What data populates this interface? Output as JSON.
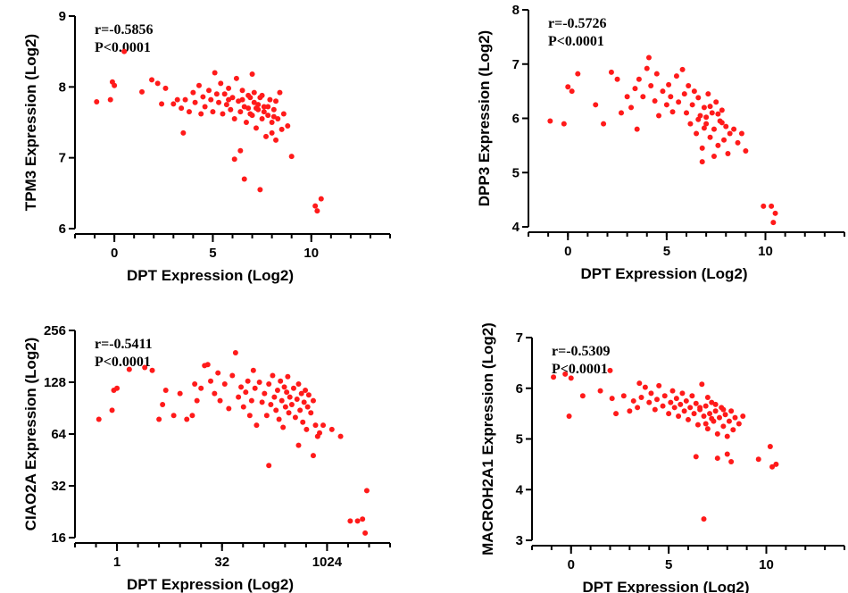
{
  "chart_data": [
    {
      "type": "scatter",
      "xlabel": "DPT Expression (Log2)",
      "ylabel": "TPM3 Expression (Log2)",
      "xlim": [
        -2,
        14
      ],
      "ylim": [
        6,
        9
      ],
      "xticks": [
        0,
        5,
        10
      ],
      "xtick_labels": [
        "0",
        "5",
        "10"
      ],
      "yticks": [
        6,
        7,
        8,
        9
      ],
      "ytick_labels": [
        "6",
        "7",
        "8",
        "9"
      ],
      "x_minor_step": 1,
      "y_scale": "linear",
      "annotations": [
        "r=-0.5856",
        "P<0.0001"
      ],
      "points": [
        [
          -0.9,
          7.79
        ],
        [
          -0.2,
          7.82
        ],
        [
          -0.1,
          8.07
        ],
        [
          0.0,
          8.02
        ],
        [
          0.5,
          8.5
        ],
        [
          1.4,
          7.93
        ],
        [
          1.9,
          8.1
        ],
        [
          2.2,
          8.05
        ],
        [
          2.4,
          7.76
        ],
        [
          2.6,
          7.98
        ],
        [
          3.0,
          7.76
        ],
        [
          3.2,
          7.82
        ],
        [
          3.4,
          7.7
        ],
        [
          3.5,
          7.35
        ],
        [
          3.6,
          7.82
        ],
        [
          3.8,
          7.65
        ],
        [
          4.0,
          7.92
        ],
        [
          4.1,
          7.78
        ],
        [
          4.3,
          8.02
        ],
        [
          4.4,
          7.62
        ],
        [
          4.5,
          7.86
        ],
        [
          4.6,
          7.72
        ],
        [
          4.8,
          7.95
        ],
        [
          4.9,
          7.82
        ],
        [
          5.0,
          7.65
        ],
        [
          5.1,
          8.2
        ],
        [
          5.2,
          7.9
        ],
        [
          5.3,
          7.78
        ],
        [
          5.4,
          8.05
        ],
        [
          5.5,
          7.62
        ],
        [
          5.6,
          7.9
        ],
        [
          5.7,
          7.75
        ],
        [
          5.8,
          7.98
        ],
        [
          5.9,
          7.68
        ],
        [
          6.0,
          7.85
        ],
        [
          6.1,
          7.55
        ],
        [
          6.2,
          8.12
        ],
        [
          6.3,
          7.8
        ],
        [
          6.4,
          7.65
        ],
        [
          6.5,
          7.95
        ],
        [
          6.6,
          7.72
        ],
        [
          6.7,
          7.5
        ],
        [
          6.8,
          7.88
        ],
        [
          6.9,
          7.62
        ],
        [
          7.0,
          8.18
        ],
        [
          7.1,
          7.78
        ],
        [
          7.2,
          7.42
        ],
        [
          7.3,
          7.68
        ],
        [
          7.4,
          7.85
        ],
        [
          7.5,
          7.55
        ],
        [
          7.6,
          7.72
        ],
        [
          7.7,
          7.3
        ],
        [
          7.8,
          7.6
        ],
        [
          7.9,
          7.82
        ],
        [
          8.0,
          7.5
        ],
        [
          8.1,
          7.68
        ],
        [
          8.2,
          7.25
        ],
        [
          8.3,
          7.55
        ],
        [
          8.4,
          7.92
        ],
        [
          8.5,
          7.4
        ],
        [
          8.6,
          7.62
        ],
        [
          8.8,
          7.45
        ],
        [
          9.0,
          7.02
        ],
        [
          6.4,
          7.1
        ],
        [
          6.6,
          6.7
        ],
        [
          6.1,
          6.98
        ],
        [
          7.4,
          6.55
        ],
        [
          10.2,
          6.32
        ],
        [
          10.3,
          6.25
        ],
        [
          10.5,
          6.42
        ],
        [
          6.9,
          7.85
        ],
        [
          7.3,
          7.75
        ],
        [
          7.6,
          7.65
        ],
        [
          7.0,
          7.6
        ],
        [
          7.8,
          7.72
        ],
        [
          8.0,
          7.35
        ],
        [
          8.2,
          7.8
        ],
        [
          7.1,
          7.92
        ],
        [
          6.8,
          7.7
        ],
        [
          7.5,
          7.88
        ],
        [
          6.5,
          7.82
        ],
        [
          8.1,
          7.58
        ],
        [
          7.2,
          7.7
        ],
        [
          5.8,
          7.82
        ]
      ]
    },
    {
      "type": "scatter",
      "xlabel": "DPT Expression (Log2)",
      "ylabel": "DPP3 Expression (Log2)",
      "xlim": [
        -2,
        14
      ],
      "ylim": [
        4,
        8
      ],
      "xticks": [
        0,
        5,
        10
      ],
      "xtick_labels": [
        "0",
        "5",
        "10"
      ],
      "yticks": [
        4,
        5,
        6,
        7,
        8
      ],
      "ytick_labels": [
        "4",
        "5",
        "6",
        "7",
        "8"
      ],
      "x_minor_step": 1,
      "y_scale": "linear",
      "annotations": [
        "r=-0.5726",
        "P<0.0001"
      ],
      "points": [
        [
          -0.9,
          5.95
        ],
        [
          -0.2,
          5.9
        ],
        [
          0.0,
          6.58
        ],
        [
          0.2,
          6.5
        ],
        [
          0.5,
          6.82
        ],
        [
          1.4,
          6.25
        ],
        [
          1.8,
          5.9
        ],
        [
          2.2,
          6.85
        ],
        [
          2.5,
          6.72
        ],
        [
          2.7,
          6.1
        ],
        [
          3.0,
          6.4
        ],
        [
          3.2,
          6.2
        ],
        [
          3.4,
          6.55
        ],
        [
          3.5,
          5.8
        ],
        [
          3.6,
          6.72
        ],
        [
          3.8,
          6.4
        ],
        [
          4.0,
          6.92
        ],
        [
          4.1,
          7.12
        ],
        [
          4.2,
          6.6
        ],
        [
          4.4,
          6.32
        ],
        [
          4.5,
          6.82
        ],
        [
          4.6,
          6.05
        ],
        [
          4.8,
          6.5
        ],
        [
          5.0,
          6.25
        ],
        [
          5.1,
          6.62
        ],
        [
          5.2,
          6.4
        ],
        [
          5.3,
          6.12
        ],
        [
          5.5,
          6.78
        ],
        [
          5.6,
          6.3
        ],
        [
          5.8,
          6.9
        ],
        [
          5.9,
          6.45
        ],
        [
          6.0,
          6.1
        ],
        [
          6.1,
          6.6
        ],
        [
          6.2,
          5.9
        ],
        [
          6.3,
          6.25
        ],
        [
          6.4,
          6.5
        ],
        [
          6.5,
          5.72
        ],
        [
          6.6,
          6.38
        ],
        [
          6.7,
          6.05
        ],
        [
          6.8,
          5.45
        ],
        [
          6.9,
          6.2
        ],
        [
          7.0,
          5.9
        ],
        [
          7.1,
          6.45
        ],
        [
          7.2,
          5.65
        ],
        [
          7.3,
          6.1
        ],
        [
          7.4,
          5.8
        ],
        [
          7.5,
          6.3
        ],
        [
          7.6,
          5.5
        ],
        [
          7.7,
          5.95
        ],
        [
          7.8,
          6.15
        ],
        [
          7.9,
          5.6
        ],
        [
          8.0,
          5.85
        ],
        [
          8.1,
          5.35
        ],
        [
          8.2,
          5.72
        ],
        [
          8.4,
          5.8
        ],
        [
          8.6,
          5.55
        ],
        [
          8.8,
          5.72
        ],
        [
          9.0,
          5.4
        ],
        [
          6.8,
          5.2
        ],
        [
          7.4,
          5.3
        ],
        [
          9.9,
          4.38
        ],
        [
          10.3,
          4.38
        ],
        [
          10.5,
          4.25
        ],
        [
          10.4,
          4.08
        ],
        [
          7.0,
          6.02
        ],
        [
          6.6,
          5.98
        ],
        [
          7.6,
          6.08
        ],
        [
          7.2,
          6.22
        ],
        [
          6.9,
          5.82
        ],
        [
          7.8,
          5.92
        ]
      ]
    },
    {
      "type": "scatter",
      "xlabel": "DPT Expression (Log2)",
      "ylabel": "CIAO2A Expression (Log2)",
      "xlim": [
        0.25,
        8192
      ],
      "ylim": [
        16,
        256
      ],
      "x_scale": "log2",
      "y_scale": "log2",
      "xticks": [
        1,
        32,
        1024
      ],
      "xtick_labels": [
        "1",
        "32",
        "1024"
      ],
      "yticks": [
        16,
        32,
        64,
        128,
        256
      ],
      "ytick_labels": [
        "16",
        "32",
        "64",
        "128",
        "256"
      ],
      "annotations": [
        "r=-0.5411",
        "P<0.0001"
      ],
      "points": [
        [
          0.55,
          78
        ],
        [
          0.85,
          88
        ],
        [
          0.9,
          115
        ],
        [
          1.0,
          118
        ],
        [
          1.5,
          152
        ],
        [
          2.5,
          156
        ],
        [
          3.2,
          150
        ],
        [
          4.0,
          78
        ],
        [
          4.5,
          95
        ],
        [
          5.0,
          115
        ],
        [
          6.5,
          82
        ],
        [
          8.0,
          110
        ],
        [
          10,
          78
        ],
        [
          12,
          82
        ],
        [
          13,
          125
        ],
        [
          14,
          100
        ],
        [
          16,
          118
        ],
        [
          18,
          160
        ],
        [
          20,
          162
        ],
        [
          22,
          130
        ],
        [
          25,
          110
        ],
        [
          28,
          145
        ],
        [
          30,
          100
        ],
        [
          35,
          125
        ],
        [
          40,
          90
        ],
        [
          45,
          140
        ],
        [
          50,
          190
        ],
        [
          55,
          105
        ],
        [
          60,
          120
        ],
        [
          65,
          92
        ],
        [
          70,
          112
        ],
        [
          75,
          130
        ],
        [
          80,
          82
        ],
        [
          85,
          100
        ],
        [
          90,
          150
        ],
        [
          95,
          118
        ],
        [
          100,
          72
        ],
        [
          110,
          128
        ],
        [
          120,
          98
        ],
        [
          130,
          110
        ],
        [
          140,
          82
        ],
        [
          150,
          125
        ],
        [
          160,
          95
        ],
        [
          170,
          140
        ],
        [
          180,
          105
        ],
        [
          190,
          88
        ],
        [
          200,
          115
        ],
        [
          210,
          78
        ],
        [
          220,
          130
        ],
        [
          230,
          100
        ],
        [
          240,
          70
        ],
        [
          250,
          120
        ],
        [
          260,
          92
        ],
        [
          270,
          112
        ],
        [
          280,
          138
        ],
        [
          290,
          85
        ],
        [
          300,
          105
        ],
        [
          320,
          95
        ],
        [
          340,
          118
        ],
        [
          360,
          80
        ],
        [
          380,
          102
        ],
        [
          400,
          125
        ],
        [
          420,
          88
        ],
        [
          440,
          110
        ],
        [
          460,
          75
        ],
        [
          480,
          98
        ],
        [
          500,
          115
        ],
        [
          520,
          68
        ],
        [
          540,
          92
        ],
        [
          560,
          108
        ],
        [
          600,
          85
        ],
        [
          650,
          100
        ],
        [
          700,
          72
        ],
        [
          750,
          62
        ],
        [
          800,
          65
        ],
        [
          150,
          42
        ],
        [
          400,
          55
        ],
        [
          650,
          48
        ],
        [
          900,
          72
        ],
        [
          1200,
          68
        ],
        [
          1600,
          62
        ],
        [
          2200,
          20
        ],
        [
          2800,
          20
        ],
        [
          3300,
          20.5
        ],
        [
          3600,
          17
        ],
        [
          3800,
          30
        ]
      ]
    },
    {
      "type": "scatter",
      "xlabel": "DPT Expression (Log2)",
      "ylabel": "MACROH2A1 Expression (Log2)",
      "xlim": [
        -2,
        14
      ],
      "ylim": [
        3,
        7
      ],
      "xticks": [
        0,
        5,
        10
      ],
      "xtick_labels": [
        "0",
        "5",
        "10"
      ],
      "yticks": [
        3,
        4,
        5,
        6,
        7
      ],
      "ytick_labels": [
        "3",
        "4",
        "5",
        "6",
        "7"
      ],
      "x_minor_step": 1,
      "y_scale": "linear",
      "annotations": [
        "r=-0.5309",
        "P<0.0001"
      ],
      "points": [
        [
          -0.9,
          6.22
        ],
        [
          -0.3,
          6.28
        ],
        [
          0.0,
          6.2
        ],
        [
          -0.1,
          5.45
        ],
        [
          0.6,
          5.85
        ],
        [
          1.5,
          5.95
        ],
        [
          2.0,
          6.35
        ],
        [
          2.1,
          5.8
        ],
        [
          2.3,
          5.5
        ],
        [
          2.7,
          5.85
        ],
        [
          3.0,
          5.55
        ],
        [
          3.2,
          5.75
        ],
        [
          3.4,
          5.62
        ],
        [
          3.5,
          6.1
        ],
        [
          3.6,
          5.82
        ],
        [
          3.8,
          6.02
        ],
        [
          4.0,
          5.72
        ],
        [
          4.1,
          5.9
        ],
        [
          4.3,
          5.58
        ],
        [
          4.4,
          5.78
        ],
        [
          4.5,
          6.05
        ],
        [
          4.7,
          5.65
        ],
        [
          4.8,
          5.85
        ],
        [
          5.0,
          5.5
        ],
        [
          5.1,
          5.72
        ],
        [
          5.2,
          5.95
        ],
        [
          5.3,
          5.62
        ],
        [
          5.4,
          5.8
        ],
        [
          5.5,
          5.45
        ],
        [
          5.6,
          5.68
        ],
        [
          5.7,
          5.9
        ],
        [
          5.8,
          5.55
        ],
        [
          5.9,
          5.75
        ],
        [
          6.0,
          5.38
        ],
        [
          6.1,
          5.62
        ],
        [
          6.2,
          5.85
        ],
        [
          6.3,
          5.5
        ],
        [
          6.4,
          5.7
        ],
        [
          6.5,
          5.28
        ],
        [
          6.6,
          5.58
        ],
        [
          6.7,
          6.08
        ],
        [
          6.8,
          5.45
        ],
        [
          6.9,
          5.65
        ],
        [
          7.0,
          5.2
        ],
        [
          7.1,
          5.5
        ],
        [
          7.2,
          5.72
        ],
        [
          7.3,
          5.35
        ],
        [
          7.4,
          5.55
        ],
        [
          7.5,
          5.1
        ],
        [
          7.6,
          5.42
        ],
        [
          7.7,
          5.62
        ],
        [
          7.8,
          5.25
        ],
        [
          7.9,
          5.48
        ],
        [
          8.0,
          5.05
        ],
        [
          8.1,
          5.35
        ],
        [
          8.2,
          5.55
        ],
        [
          8.3,
          5.18
        ],
        [
          8.4,
          5.42
        ],
        [
          8.6,
          5.3
        ],
        [
          8.8,
          5.45
        ],
        [
          6.4,
          4.65
        ],
        [
          7.5,
          4.62
        ],
        [
          8.0,
          4.7
        ],
        [
          8.2,
          4.55
        ],
        [
          6.8,
          3.42
        ],
        [
          9.6,
          4.6
        ],
        [
          10.2,
          4.85
        ],
        [
          10.3,
          4.45
        ],
        [
          10.5,
          4.5
        ],
        [
          6.6,
          5.62
        ],
        [
          7.2,
          5.4
        ],
        [
          7.8,
          5.58
        ],
        [
          7.0,
          5.82
        ],
        [
          6.9,
          5.3
        ],
        [
          7.4,
          5.68
        ]
      ]
    }
  ]
}
